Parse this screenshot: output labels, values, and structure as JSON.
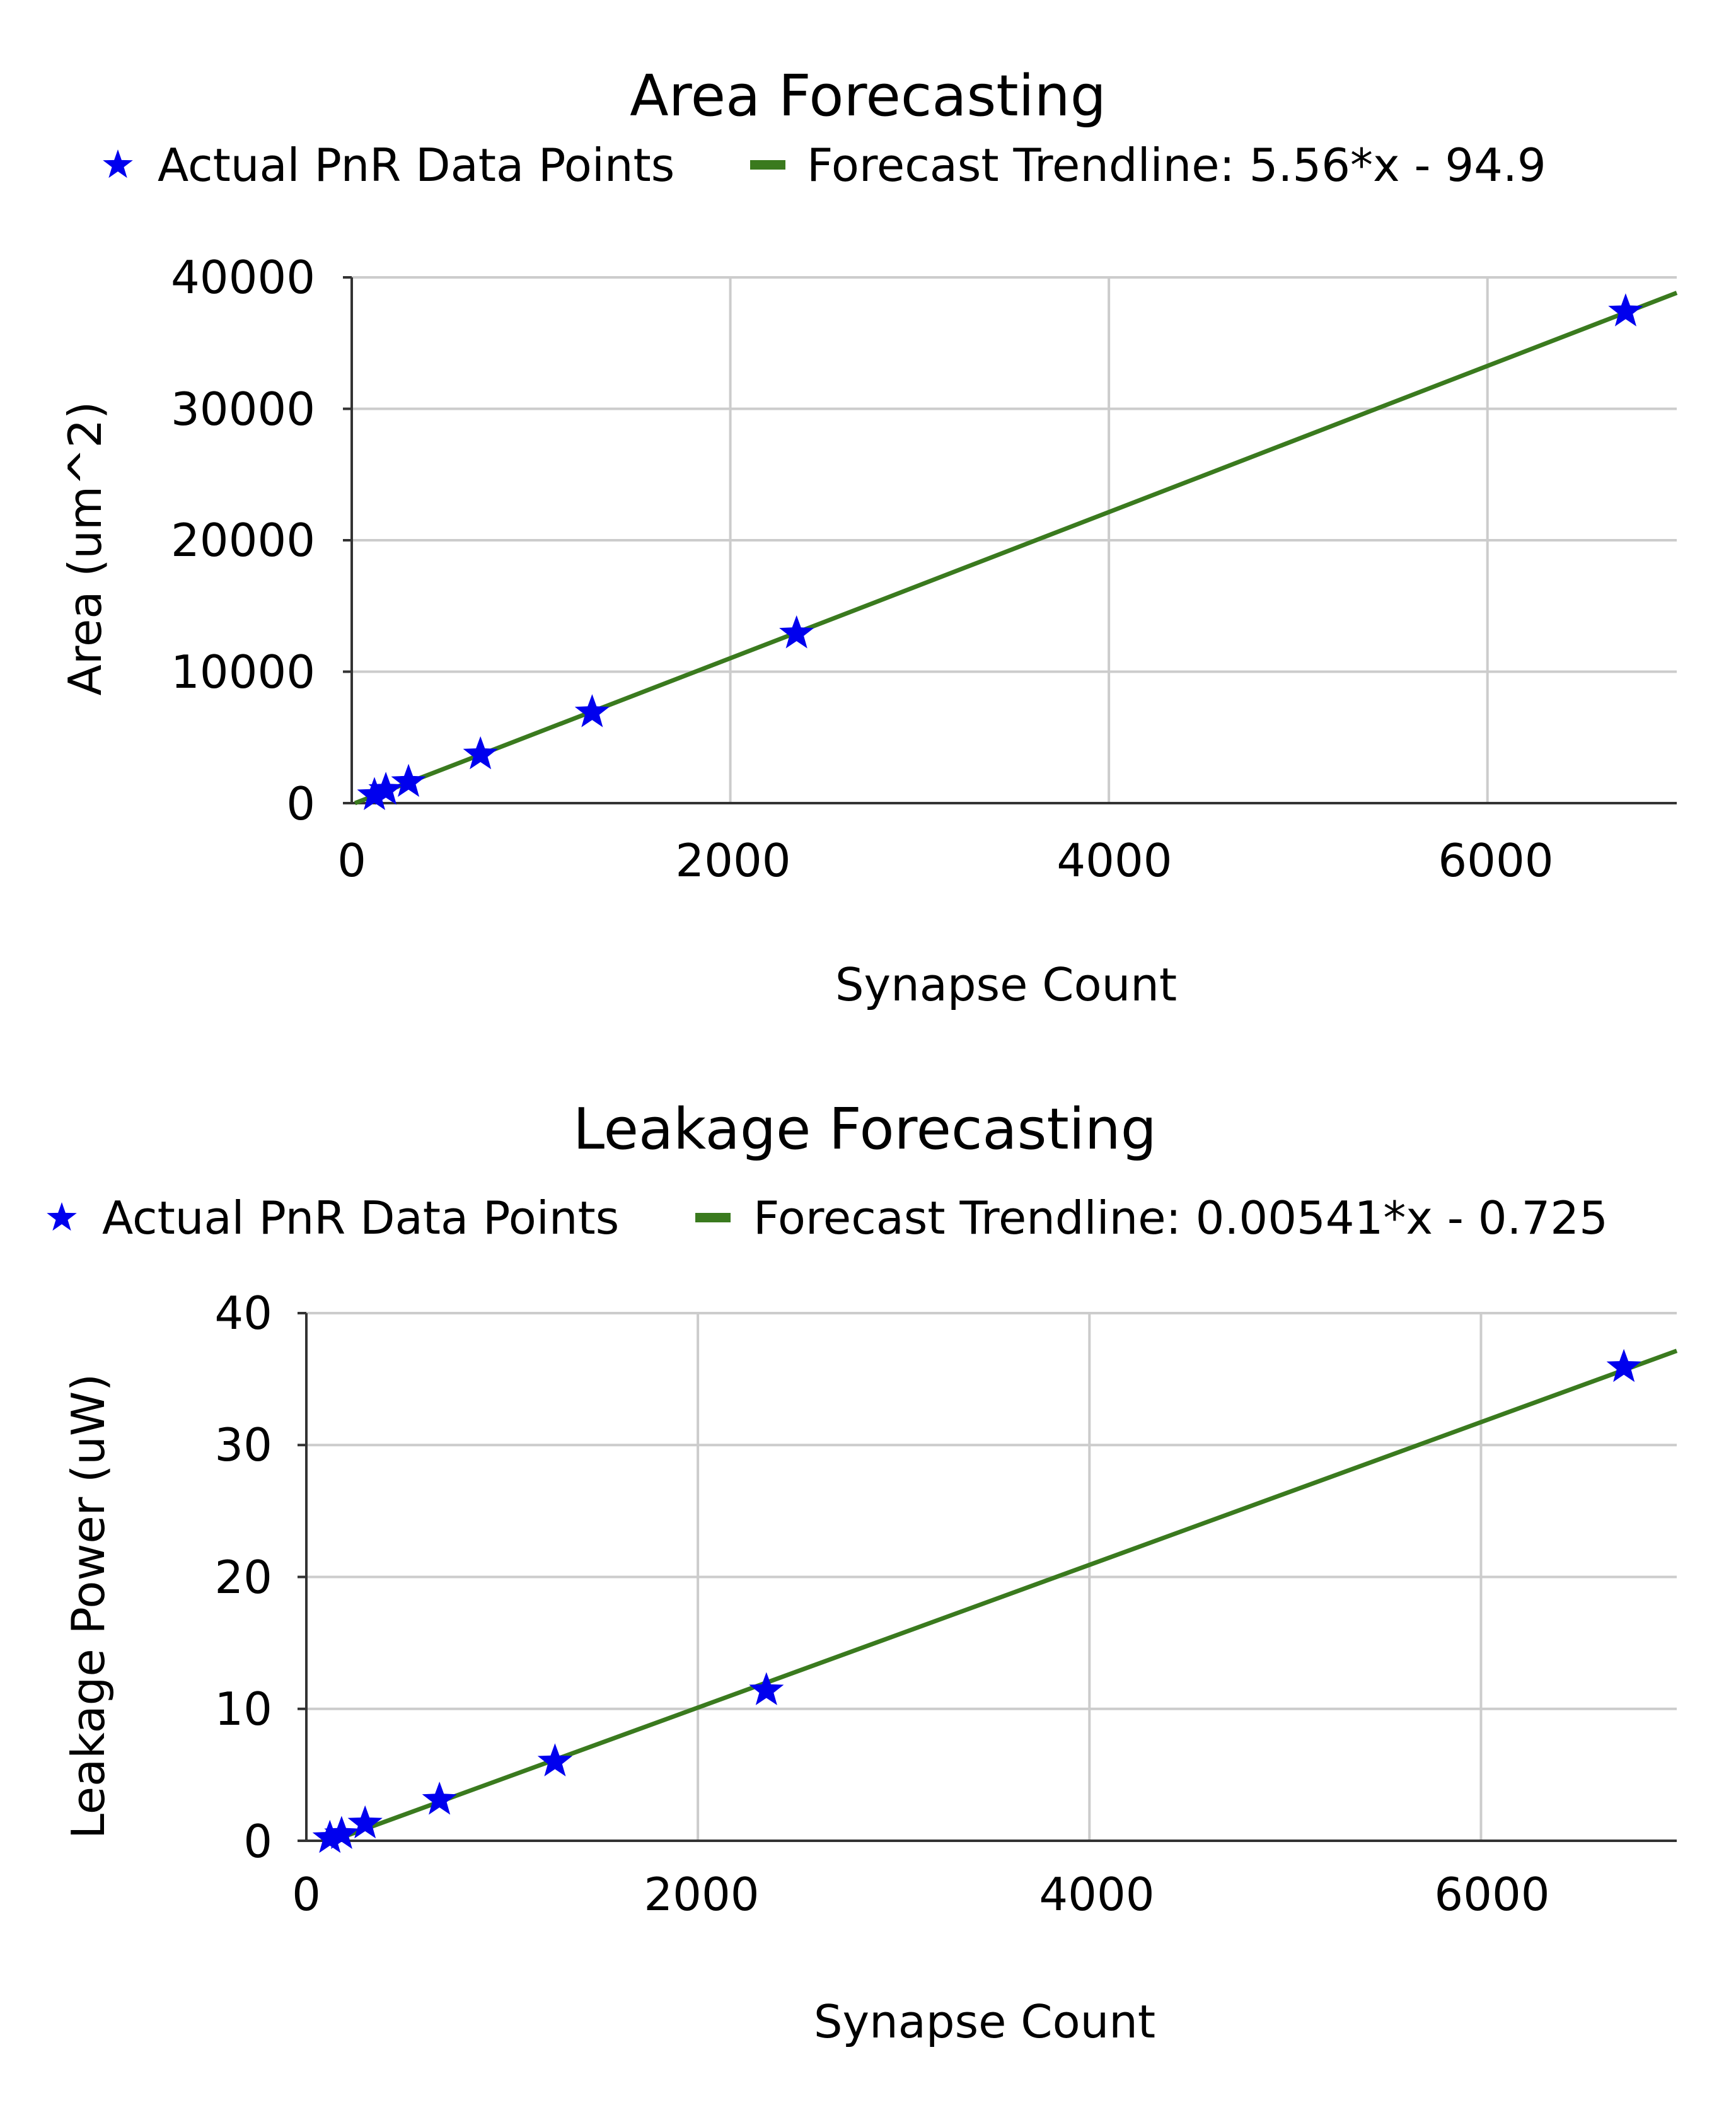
{
  "chart_data": [
    {
      "type": "scatter",
      "title": "Area Forecasting",
      "xlabel": "Synapse Count",
      "ylabel": "Area (um^2)",
      "xlim": [
        0,
        7000
      ],
      "ylim": [
        0,
        40000
      ],
      "xticks": [
        "0",
        "2000",
        "4000",
        "6000"
      ],
      "yticks": [
        "0",
        "10000",
        "20000",
        "30000",
        "40000"
      ],
      "grid": true,
      "legend_position": "top",
      "series": [
        {
          "name": "Actual PnR Data Points",
          "type": "scatter",
          "marker": "star",
          "color": "#0000ee",
          "x": [
            120,
            180,
            300,
            680,
            1270,
            2350,
            6730
          ],
          "y": [
            600,
            1000,
            1600,
            3700,
            6900,
            12900,
            37400
          ]
        },
        {
          "name": "Forecast Trendline: 5.56*x - 94.9",
          "type": "line",
          "color": "#3a7a1e",
          "slope": 5.56,
          "intercept": -94.9,
          "x": [
            0,
            7000
          ]
        }
      ]
    },
    {
      "type": "scatter",
      "title": "Leakage Forecasting",
      "xlabel": "Synapse Count",
      "ylabel": "Leakage Power (uW)",
      "xlim": [
        0,
        7000
      ],
      "ylim": [
        0,
        40
      ],
      "xticks": [
        "0",
        "2000",
        "4000",
        "6000"
      ],
      "yticks": [
        "0",
        "10",
        "20",
        "30",
        "40"
      ],
      "grid": true,
      "legend_position": "top",
      "series": [
        {
          "name": "Actual PnR Data Points",
          "type": "scatter",
          "marker": "star",
          "color": "#0000ee",
          "x": [
            120,
            180,
            300,
            680,
            1270,
            2350,
            6730
          ],
          "y": [
            0.2,
            0.5,
            1.3,
            3.1,
            6.0,
            11.4,
            35.9
          ]
        },
        {
          "name": "Forecast Trendline: 0.00541*x - 0.725",
          "type": "line",
          "color": "#3a7a1e",
          "slope": 0.00541,
          "intercept": -0.725,
          "x": [
            0,
            7000
          ]
        }
      ]
    }
  ]
}
